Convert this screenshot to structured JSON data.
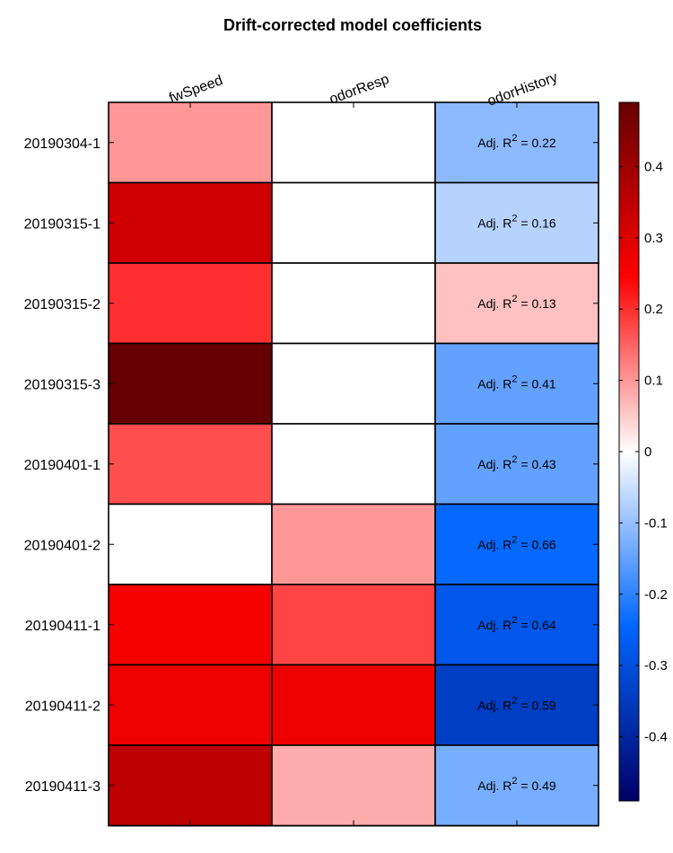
{
  "chart_data": {
    "type": "heatmap",
    "title": "Drift-corrected model coefficients",
    "columns": [
      "fwSpeed",
      "odorResp",
      "odorHistory"
    ],
    "rows": [
      "20190304-1",
      "20190315-1",
      "20190315-2",
      "20190315-3",
      "20190401-1",
      "20190401-2",
      "20190411-1",
      "20190411-2",
      "20190411-3"
    ],
    "values": [
      [
        0.1,
        0.0,
        -0.11
      ],
      [
        0.32,
        0.0,
        -0.07
      ],
      [
        0.2,
        0.0,
        0.06
      ],
      [
        0.49,
        0.0,
        -0.15
      ],
      [
        0.17,
        0.0,
        -0.15
      ],
      [
        0.0,
        0.1,
        -0.24
      ],
      [
        0.26,
        0.18,
        -0.28
      ],
      [
        0.27,
        0.27,
        -0.34
      ],
      [
        0.35,
        0.08,
        -0.13
      ]
    ],
    "annotation_prefix": "Adj. R",
    "annotation_superscript": "2",
    "annotation_column": "odorHistory",
    "adj_r2": [
      "0.22",
      "0.16",
      "0.13",
      "0.41",
      "0.43",
      "0.66",
      "0.64",
      "0.59",
      "0.49"
    ],
    "colorbar": {
      "range": [
        -0.49,
        0.49
      ],
      "ticks": [
        "0.4",
        "0.3",
        "0.2",
        "0.1",
        "0",
        "-0.1",
        "-0.2",
        "-0.3",
        "-0.4"
      ],
      "colormap": "blue-white-red diverging",
      "colors": {
        "negative_end": "#000066",
        "negative_mid": "#0066ff",
        "center": "#ffffff",
        "positive_mid": "#ff0000",
        "positive_end": "#660000"
      }
    }
  }
}
